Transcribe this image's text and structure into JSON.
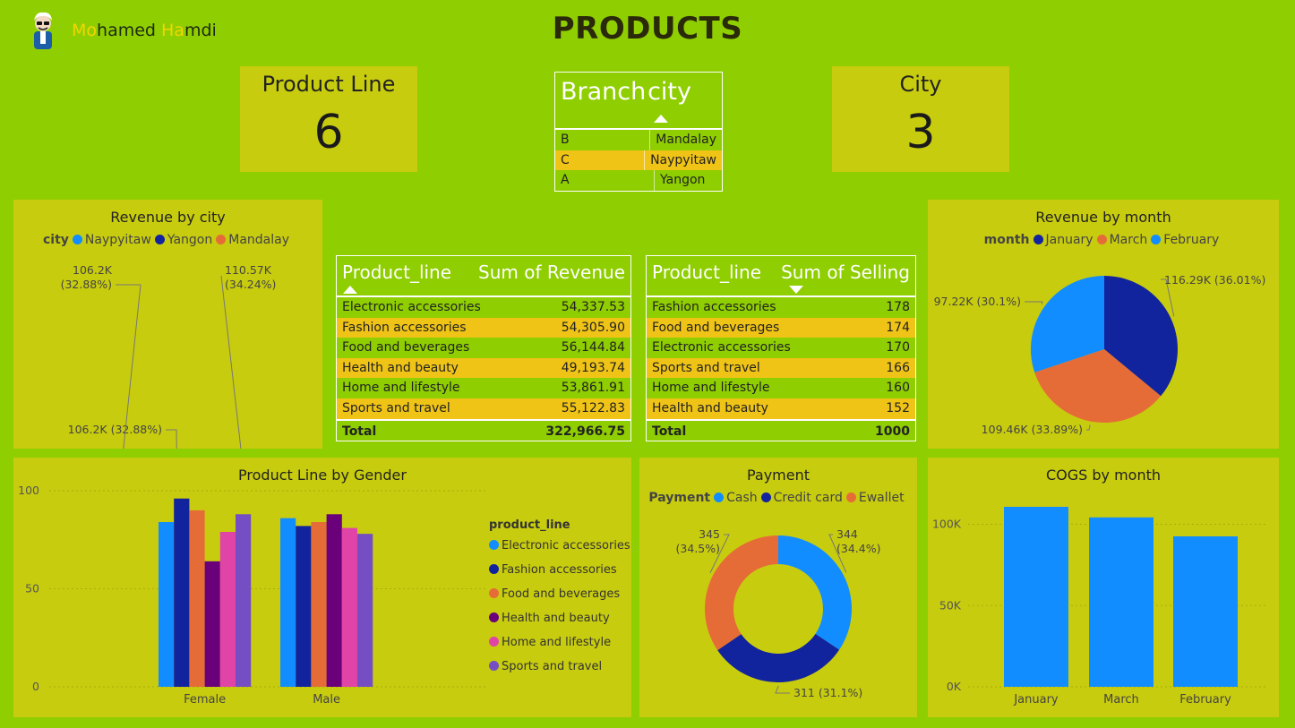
{
  "header": {
    "brand_first_hl": "Mo",
    "brand_first_rest": "hamed ",
    "brand_last_hl": "Ha",
    "brand_last_rest": "mdi",
    "title": "PRODUCTS"
  },
  "kpis": {
    "product_line": {
      "label": "Product Line",
      "value": "6"
    },
    "city": {
      "label": "City",
      "value": "3"
    }
  },
  "branch_table": {
    "col1": "Branch",
    "col2": "city",
    "rows": [
      {
        "branch": "B",
        "city": "Mandalay"
      },
      {
        "branch": "C",
        "city": "Naypyitaw"
      },
      {
        "branch": "A",
        "city": "Yangon"
      }
    ]
  },
  "revenue_table": {
    "col1": "Product_line",
    "col2": "Sum of Revenue",
    "rows": [
      {
        "name": "Electronic accessories",
        "value": "54,337.53"
      },
      {
        "name": "Fashion accessories",
        "value": "54,305.90"
      },
      {
        "name": "Food and beverages",
        "value": "56,144.84"
      },
      {
        "name": "Health and beauty",
        "value": "49,193.74"
      },
      {
        "name": "Home and lifestyle",
        "value": "53,861.91"
      },
      {
        "name": "Sports and travel",
        "value": "55,122.83"
      }
    ],
    "total_label": "Total",
    "total_value": "322,966.75"
  },
  "selling_table": {
    "col1": "Product_line",
    "col2": "Sum of Selling",
    "rows": [
      {
        "name": "Fashion accessories",
        "value": "178"
      },
      {
        "name": "Food and beverages",
        "value": "174"
      },
      {
        "name": "Electronic accessories",
        "value": "170"
      },
      {
        "name": "Sports and travel",
        "value": "166"
      },
      {
        "name": "Home and lifestyle",
        "value": "160"
      },
      {
        "name": "Health and beauty",
        "value": "152"
      }
    ],
    "total_label": "Total",
    "total_value": "1000"
  },
  "colors": {
    "page_bg": "#8fce00",
    "panel_bg": "#c8cc0e",
    "row_alt": "#f0c417",
    "light_blue": "#118dff",
    "dark_blue": "#12239e",
    "orange": "#e66c37",
    "purple_dark": "#6b007b",
    "pink": "#e044a7",
    "violet": "#744ec2"
  },
  "chart_data": [
    {
      "id": "revenue_by_city",
      "type": "pie",
      "variant": "donut",
      "title": "Revenue by city",
      "legend_title": "city",
      "labels": [
        "Naypyitaw",
        "Yangon",
        "Mandalay"
      ],
      "values": [
        110.57,
        106.2,
        106.2
      ],
      "unit": "K",
      "data_labels": [
        "110.57K (34.24%)",
        "106.2K (32.88%)",
        "106.2K (32.88%)"
      ],
      "colors": [
        "#118dff",
        "#12239e",
        "#e66c37"
      ]
    },
    {
      "id": "revenue_by_month",
      "type": "pie",
      "title": "Revenue by month",
      "legend_title": "month",
      "labels": [
        "January",
        "March",
        "February"
      ],
      "values": [
        116.29,
        109.46,
        97.22
      ],
      "unit": "K",
      "data_labels": [
        "116.29K (36.01%)",
        "109.46K (33.89%)",
        "97.22K (30.1%)"
      ],
      "colors": [
        "#12239e",
        "#e66c37",
        "#118dff"
      ]
    },
    {
      "id": "product_line_by_gender",
      "type": "bar",
      "title": "Product Line by Gender",
      "categories": [
        "Female",
        "Male"
      ],
      "legend_title": "product_line",
      "legend_position": "right",
      "ylim": [
        0,
        100
      ],
      "yticks": [
        "0",
        "50",
        "100"
      ],
      "series": [
        {
          "name": "Electronic accessories",
          "values": [
            84,
            86
          ],
          "color": "#118dff"
        },
        {
          "name": "Fashion accessories",
          "values": [
            96,
            82
          ],
          "color": "#12239e"
        },
        {
          "name": "Food and beverages",
          "values": [
            90,
            84
          ],
          "color": "#e66c37"
        },
        {
          "name": "Health and beauty",
          "values": [
            64,
            88
          ],
          "color": "#6b007b"
        },
        {
          "name": "Home and lifestyle",
          "values": [
            79,
            81
          ],
          "color": "#e044a7"
        },
        {
          "name": "Sports and travel",
          "values": [
            88,
            78
          ],
          "color": "#744ec2"
        }
      ]
    },
    {
      "id": "payment",
      "type": "pie",
      "variant": "donut",
      "title": "Payment",
      "legend_title": "Payment",
      "labels": [
        "Cash",
        "Credit card",
        "Ewallet"
      ],
      "values": [
        344,
        311,
        345
      ],
      "data_labels": [
        "344 (34.4%)",
        "311 (31.1%)",
        "345 (34.5%)"
      ],
      "colors": [
        "#118dff",
        "#12239e",
        "#e66c37"
      ]
    },
    {
      "id": "cogs_by_month",
      "type": "bar",
      "title": "COGS by month",
      "categories": [
        "January",
        "March",
        "February"
      ],
      "values": [
        110754,
        104243,
        92590
      ],
      "ylim": [
        0,
        110754
      ],
      "yticks": [
        "0K",
        "50K",
        "100K"
      ],
      "color": "#118dff"
    }
  ]
}
